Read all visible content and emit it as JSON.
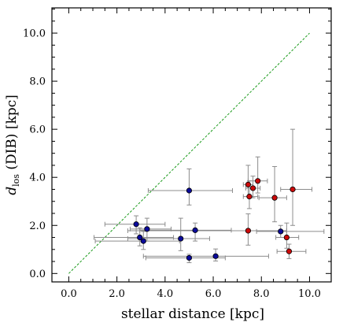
{
  "chart_data": {
    "type": "scatter",
    "xlabel": "stellar distance [kpc]",
    "ylabel_main": "d",
    "ylabel_sub": "los",
    "ylabel_rest": " (DIB) [kpc]",
    "xlim": [
      -0.7,
      10.9
    ],
    "ylim": [
      -0.35,
      11.05
    ],
    "xticks": [
      "0.0",
      "2.0",
      "4.0",
      "6.0",
      "8.0",
      "10.0"
    ],
    "yticks": [
      "0.0",
      "2.0",
      "4.0",
      "6.0",
      "8.0",
      "10.0"
    ],
    "grid": false,
    "reference_line": {
      "x": [
        0,
        10
      ],
      "y": [
        0,
        10
      ],
      "color": "#1a9a1a",
      "style": "dashed"
    },
    "series": [
      {
        "color": "#0a0a9a",
        "points": [
          {
            "x": 2.8,
            "y": 2.05,
            "xerr": [
              1.3,
              1.2
            ],
            "yerr": [
              0.4,
              0.35
            ]
          },
          {
            "x": 2.95,
            "y": 1.5,
            "xerr": [
              1.9,
              1.4
            ],
            "yerr": [
              0.35,
              0.4
            ]
          },
          {
            "x": 3.1,
            "y": 1.35,
            "xerr": [
              2.0,
              1.5
            ],
            "yerr": [
              0.35,
              0.4
            ]
          },
          {
            "x": 3.25,
            "y": 1.85,
            "xerr": [
              0.7,
              1.0
            ],
            "yerr": [
              0.5,
              0.45
            ]
          },
          {
            "x": 4.65,
            "y": 1.45,
            "xerr": [
              2.2,
              1.2
            ],
            "yerr": [
              0.5,
              0.85
            ]
          },
          {
            "x": 5.0,
            "y": 3.45,
            "xerr": [
              1.7,
              1.8
            ],
            "yerr": [
              0.6,
              0.9
            ]
          },
          {
            "x": 5.0,
            "y": 0.65,
            "xerr": [
              1.8,
              1.5
            ],
            "yerr": [
              0.2,
              0.15
            ]
          },
          {
            "x": 5.25,
            "y": 1.8,
            "xerr": [
              2.3,
              1.5
            ],
            "yerr": [
              0.45,
              0.3
            ]
          },
          {
            "x": 6.1,
            "y": 0.72,
            "xerr": [
              3.0,
              2.2
            ],
            "yerr": [
              0.2,
              0.3
            ]
          },
          {
            "x": 8.8,
            "y": 1.75,
            "xerr": [
              1.0,
              1.8
            ],
            "yerr": [
              0.25,
              0.25
            ]
          }
        ]
      },
      {
        "color": "#cc0a0a",
        "points": [
          {
            "x": 7.45,
            "y": 3.7,
            "xerr": [
              0.2,
              0.2
            ],
            "yerr": [
              0.5,
              0.8
            ]
          },
          {
            "x": 7.45,
            "y": 1.78,
            "xerr": [
              5.0,
              1.6
            ],
            "yerr": [
              0.6,
              0.7
            ]
          },
          {
            "x": 7.5,
            "y": 3.2,
            "xerr": [
              0.25,
              0.35
            ],
            "yerr": [
              0.5,
              0.65
            ]
          },
          {
            "x": 7.65,
            "y": 3.55,
            "xerr": [
              0.3,
              0.3
            ],
            "yerr": [
              0.4,
              0.5
            ]
          },
          {
            "x": 7.85,
            "y": 3.85,
            "xerr": [
              0.4,
              0.4
            ],
            "yerr": [
              0.5,
              1.0
            ]
          },
          {
            "x": 8.55,
            "y": 3.15,
            "xerr": [
              0.65,
              0.5
            ],
            "yerr": [
              1.0,
              1.3
            ]
          },
          {
            "x": 9.05,
            "y": 1.5,
            "xerr": [
              0.45,
              0.5
            ],
            "yerr": [
              0.45,
              0.6
            ]
          },
          {
            "x": 9.15,
            "y": 0.92,
            "xerr": [
              0.5,
              0.7
            ],
            "yerr": [
              0.3,
              0.3
            ]
          },
          {
            "x": 9.3,
            "y": 3.5,
            "xerr": [
              0.5,
              0.8
            ],
            "yerr": [
              1.5,
              2.5
            ]
          }
        ]
      }
    ]
  }
}
